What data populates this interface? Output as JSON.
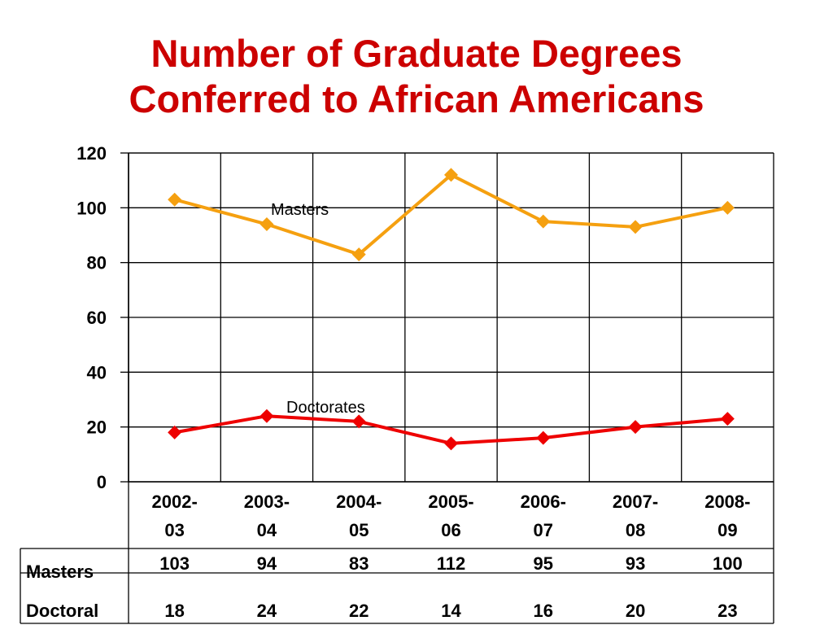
{
  "title_lines": [
    "Number of Graduate Degrees",
    "Conferred to African Americans"
  ],
  "colors": {
    "title": "#cc0000",
    "masters": "#f5a010",
    "doctorates": "#ee0000",
    "grid": "#000000"
  },
  "chart_data": {
    "type": "line",
    "title": "Number of Graduate Degrees Conferred to African Americans",
    "categories": [
      "2002-03",
      "2003-04",
      "2004-05",
      "2005-06",
      "2006-07",
      "2007-08",
      "2008-09"
    ],
    "category_lines": [
      [
        "2002-",
        "03"
      ],
      [
        "2003-",
        "04"
      ],
      [
        "2004-",
        "05"
      ],
      [
        "2005-",
        "06"
      ],
      [
        "2006-",
        "07"
      ],
      [
        "2007-",
        "08"
      ],
      [
        "2008-",
        "09"
      ]
    ],
    "series": [
      {
        "name": "Masters",
        "table_label": "Masters",
        "values": [
          103,
          94,
          83,
          112,
          95,
          93,
          100
        ],
        "marker": "diamond",
        "color_key": "masters"
      },
      {
        "name": "Doctorates",
        "table_label": "Doctoral",
        "values": [
          18,
          24,
          22,
          14,
          16,
          20,
          23
        ],
        "marker": "diamond",
        "color_key": "doctorates"
      }
    ],
    "ylim": [
      0,
      120
    ],
    "yticks": [
      0,
      20,
      40,
      60,
      80,
      100,
      120
    ],
    "grid": true,
    "legend": "none",
    "data_table": true
  }
}
